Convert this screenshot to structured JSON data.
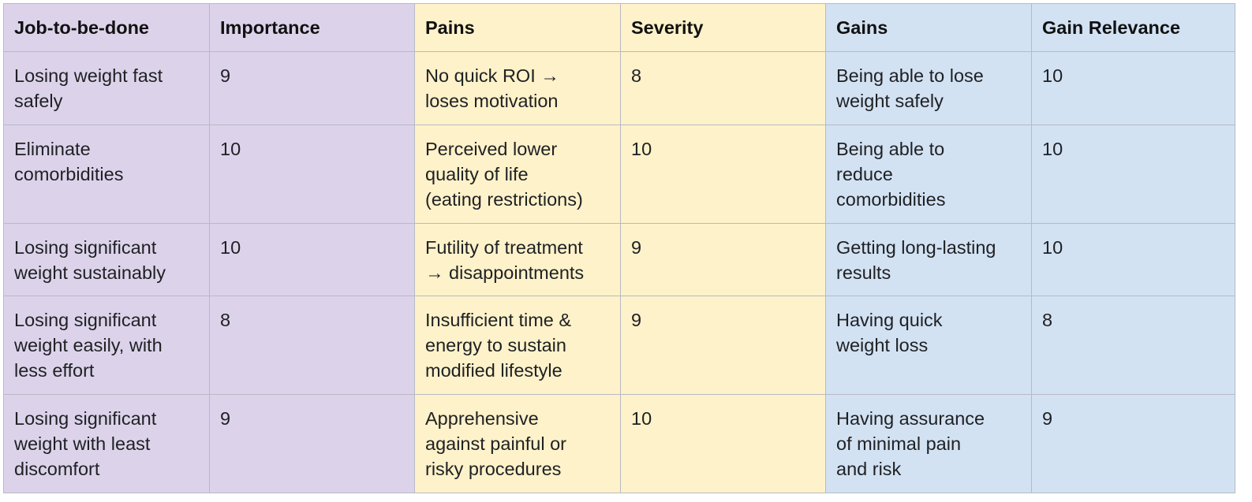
{
  "headers": {
    "job": "Job-to-be-done",
    "importance": "Importance",
    "pains": "Pains",
    "severity": "Severity",
    "gains": "Gains",
    "gain_relevance": "Gain Relevance"
  },
  "rows": [
    {
      "job": "Losing weight fast\nsafely",
      "importance": "9",
      "pain": "No quick ROI →\nloses motivation",
      "severity": "8",
      "gain": "Being able to lose\nweight safely",
      "gain_relevance": "10"
    },
    {
      "job": "Eliminate\ncomorbidities",
      "importance": "10",
      "pain": "Perceived lower\nquality of life\n(eating restrictions)",
      "severity": "10",
      "gain": "Being able to\nreduce\ncomorbidities",
      "gain_relevance": "10"
    },
    {
      "job": "Losing significant\nweight sustainably",
      "importance": "10",
      "pain": "Futility of treatment\n→ disappointments",
      "severity": "9",
      "gain": "Getting long-lasting\nresults",
      "gain_relevance": "10"
    },
    {
      "job": "Losing significant\nweight easily, with\nless effort",
      "importance": "8",
      "pain": "Insufficient time &\nenergy to sustain\nmodified lifestyle",
      "severity": "9",
      "gain": "Having quick\nweight loss",
      "gain_relevance": "8"
    },
    {
      "job": "Losing significant\nweight with least\ndiscomfort",
      "importance": "9",
      "pain": "Apprehensive\nagainst painful or\nrisky procedures",
      "severity": "10",
      "gain": "Having assurance\nof minimal pain\nand risk",
      "gain_relevance": "9"
    }
  ],
  "colors": {
    "job_column_bg": "#dcd3eb",
    "pain_column_bg": "#fef2ca",
    "gain_column_bg": "#d2e2f3",
    "grid_line": "#b9b9c2"
  }
}
